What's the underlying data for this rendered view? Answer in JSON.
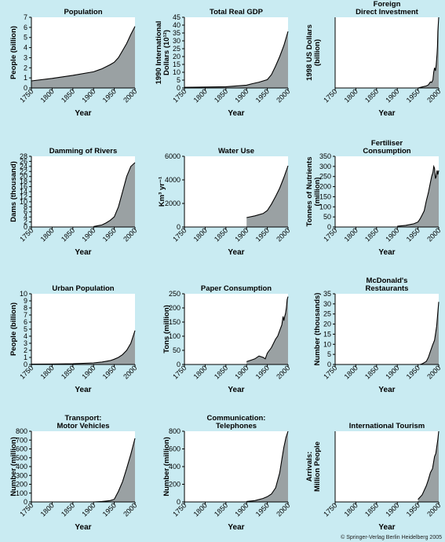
{
  "copyright": "© Springer-Verlag Berlin Heidelberg 2005",
  "colors": {
    "background": "#c9ebf2",
    "plot_fill": "#ffffff",
    "area_fill": "#9aa1a3",
    "line": "#000000"
  },
  "chart_data": [
    {
      "type": "area",
      "title": [
        "Population"
      ],
      "xlabel": "Year",
      "ylabel": [
        "People (billion)"
      ],
      "xticks": [
        1750,
        1800,
        1850,
        1900,
        1950,
        2000
      ],
      "yticks": [
        0,
        1,
        2,
        3,
        4,
        5,
        6,
        7
      ],
      "xlim": [
        1750,
        2000
      ],
      "ylim": [
        0,
        7
      ],
      "x": [
        1750,
        1800,
        1850,
        1900,
        1920,
        1940,
        1950,
        1960,
        1970,
        1980,
        1990,
        2000
      ],
      "y": [
        0.7,
        0.95,
        1.25,
        1.6,
        1.9,
        2.3,
        2.55,
        3.0,
        3.7,
        4.4,
        5.3,
        6.1
      ]
    },
    {
      "type": "area",
      "title": [
        "Total Real GDP"
      ],
      "xlabel": "Year",
      "ylabel": [
        "1990 International",
        "Dollars (10¹²)"
      ],
      "xticks": [
        1750,
        1800,
        1850,
        1900,
        1950,
        2000
      ],
      "yticks": [
        0,
        5,
        10,
        15,
        20,
        25,
        30,
        35,
        40,
        45
      ],
      "xlim": [
        1750,
        2000
      ],
      "ylim": [
        0,
        45
      ],
      "x": [
        1750,
        1800,
        1850,
        1900,
        1913,
        1930,
        1950,
        1960,
        1970,
        1980,
        1990,
        2000
      ],
      "y": [
        0.4,
        0.6,
        0.8,
        1.8,
        2.7,
        3.7,
        5.3,
        8.5,
        14,
        20,
        27,
        36
      ]
    },
    {
      "type": "area",
      "title": [
        "Foreign",
        "Direct Investment"
      ],
      "xlabel": "Year",
      "ylabel": [
        "1998 US Dollars",
        "(billion)"
      ],
      "xticks": [
        1750,
        1800,
        1850,
        1900,
        1950,
        2000
      ],
      "yticks": [],
      "xlim": [
        1750,
        2000
      ],
      "ylim": [
        0,
        700
      ],
      "x": [
        1950,
        1960,
        1970,
        1975,
        1980,
        1983,
        1986,
        1988,
        1990,
        1992,
        1994,
        1996,
        1997,
        1998,
        2000
      ],
      "y": [
        0,
        10,
        20,
        30,
        60,
        55,
        80,
        160,
        200,
        170,
        230,
        340,
        410,
        560,
        700
      ]
    },
    {
      "type": "area",
      "title": [
        "Damming of Rivers"
      ],
      "xlabel": "Year",
      "ylabel": [
        "Dams (thousand)"
      ],
      "xticks": [
        1750,
        1800,
        1850,
        1900,
        1950,
        2000
      ],
      "yticks": [
        0,
        2,
        4,
        6,
        8,
        10,
        12,
        14,
        16,
        18,
        20,
        22,
        24,
        26,
        28
      ],
      "xlim": [
        1750,
        2000
      ],
      "ylim": [
        0,
        28
      ],
      "x": [
        1900,
        1920,
        1930,
        1940,
        1950,
        1960,
        1970,
        1980,
        1990,
        2000
      ],
      "y": [
        0.2,
        0.8,
        1.6,
        2.6,
        4.0,
        8.0,
        14.0,
        20.0,
        24.0,
        25.5
      ]
    },
    {
      "type": "area",
      "title": [
        "Water Use"
      ],
      "xlabel": "Year",
      "ylabel": [
        "Km³ yr⁻¹"
      ],
      "xticks": [
        1750,
        1800,
        1850,
        1900,
        1950,
        2000
      ],
      "yticks": [
        0,
        2000,
        4000,
        6000
      ],
      "xlim": [
        1750,
        2000
      ],
      "ylim": [
        0,
        6000
      ],
      "x": [
        1900,
        1920,
        1940,
        1950,
        1960,
        1970,
        1980,
        1990,
        2000
      ],
      "y": [
        800,
        950,
        1150,
        1400,
        1950,
        2600,
        3300,
        4200,
        5200
      ]
    },
    {
      "type": "area",
      "title": [
        "Fertiliser",
        "Consumption"
      ],
      "xlabel": "Year",
      "ylabel": [
        "Tonnes of Nutrients",
        "(million)"
      ],
      "xticks": [
        1750,
        1800,
        1850,
        1900,
        1950,
        2000
      ],
      "yticks": [
        0,
        50,
        100,
        150,
        200,
        250,
        300,
        350
      ],
      "xlim": [
        1750,
        2000
      ],
      "ylim": [
        0,
        350
      ],
      "x": [
        1900,
        1920,
        1930,
        1940,
        1950,
        1955,
        1960,
        1965,
        1970,
        1975,
        1980,
        1983,
        1986,
        1988,
        1990,
        1992,
        1994,
        1996,
        1998,
        2000
      ],
      "y": [
        4,
        8,
        12,
        16,
        25,
        40,
        60,
        80,
        130,
        170,
        220,
        250,
        270,
        300,
        290,
        240,
        250,
        280,
        260,
        280
      ]
    },
    {
      "type": "area",
      "title": [
        "Urban Population"
      ],
      "xlabel": "Year",
      "ylabel": [
        "People (billion)"
      ],
      "xticks": [
        1750,
        1800,
        1850,
        1900,
        1950,
        2000
      ],
      "yticks": [
        0,
        1,
        2,
        3,
        4,
        5,
        6,
        7,
        8,
        9,
        10
      ],
      "xlim": [
        1750,
        2000
      ],
      "ylim": [
        0,
        10
      ],
      "x": [
        1750,
        1800,
        1850,
        1900,
        1920,
        1940,
        1950,
        1960,
        1970,
        1980,
        1990,
        2000
      ],
      "y": [
        0.05,
        0.07,
        0.1,
        0.22,
        0.35,
        0.55,
        0.75,
        1.0,
        1.4,
        2.0,
        3.0,
        4.8
      ]
    },
    {
      "type": "area",
      "title": [
        "Paper Consumption"
      ],
      "xlabel": "Year",
      "ylabel": [
        "Tons (million)"
      ],
      "xticks": [
        1750,
        1800,
        1850,
        1900,
        1950,
        2000
      ],
      "yticks": [
        0,
        50,
        100,
        150,
        200,
        250
      ],
      "xlim": [
        1750,
        2000
      ],
      "ylim": [
        0,
        250
      ],
      "x": [
        1900,
        1910,
        1920,
        1930,
        1940,
        1945,
        1950,
        1960,
        1970,
        1975,
        1980,
        1985,
        1988,
        1990,
        1992,
        1994,
        1996,
        1998,
        2000
      ],
      "y": [
        10,
        15,
        20,
        30,
        25,
        20,
        40,
        60,
        90,
        100,
        120,
        140,
        170,
        155,
        170,
        180,
        200,
        230,
        240
      ]
    },
    {
      "type": "area",
      "title": [
        "McDonald's",
        "Restaurants"
      ],
      "xlabel": "Year",
      "ylabel": [
        "Number (thousands)"
      ],
      "xticks": [
        1750,
        1800,
        1850,
        1900,
        1950,
        2000
      ],
      "yticks": [
        0,
        5,
        10,
        15,
        20,
        25,
        30,
        35
      ],
      "xlim": [
        1750,
        2000
      ],
      "ylim": [
        0,
        35
      ],
      "x": [
        1955,
        1960,
        1970,
        1975,
        1980,
        1985,
        1990,
        1995,
        2000
      ],
      "y": [
        0,
        0.3,
        1.5,
        3.5,
        6.5,
        9.5,
        12,
        19,
        31
      ]
    },
    {
      "type": "area",
      "title": [
        "Transport:",
        "Motor Vehicles"
      ],
      "xlabel": "Year",
      "ylabel": [
        "Number (million)"
      ],
      "xticks": [
        1750,
        1800,
        1850,
        1900,
        1950,
        2000
      ],
      "yticks": [
        0,
        100,
        200,
        300,
        400,
        500,
        600,
        700,
        800
      ],
      "xlim": [
        1750,
        2000
      ],
      "ylim": [
        0,
        800
      ],
      "x": [
        1900,
        1920,
        1930,
        1940,
        1950,
        1960,
        1970,
        1980,
        1990,
        2000
      ],
      "y": [
        0,
        5,
        10,
        15,
        30,
        120,
        230,
        380,
        540,
        720
      ]
    },
    {
      "type": "area",
      "title": [
        "Communication:",
        "Telephones"
      ],
      "xlabel": "Year",
      "ylabel": [
        "Number (million)"
      ],
      "xticks": [
        1750,
        1800,
        1850,
        1900,
        1950,
        2000
      ],
      "yticks": [
        0,
        200,
        400,
        600,
        800
      ],
      "xlim": [
        1750,
        2000
      ],
      "ylim": [
        0,
        800
      ],
      "x": [
        1900,
        1920,
        1940,
        1950,
        1960,
        1970,
        1980,
        1985,
        1990,
        1995,
        2000
      ],
      "y": [
        5,
        15,
        40,
        60,
        90,
        160,
        330,
        480,
        620,
        730,
        800
      ]
    },
    {
      "type": "area",
      "title": [
        "International Tourism"
      ],
      "xlabel": "Year",
      "ylabel": [
        "Arrivals:",
        "Million People"
      ],
      "xticks": [
        1750,
        1800,
        1850,
        1900,
        1950,
        2000
      ],
      "yticks": [],
      "xlim": [
        1750,
        2000
      ],
      "ylim": [
        0,
        700
      ],
      "x": [
        1950,
        1960,
        1970,
        1975,
        1980,
        1985,
        1990,
        1993,
        1995,
        1998,
        2000
      ],
      "y": [
        25,
        70,
        160,
        220,
        290,
        330,
        450,
        480,
        540,
        620,
        700
      ]
    }
  ]
}
